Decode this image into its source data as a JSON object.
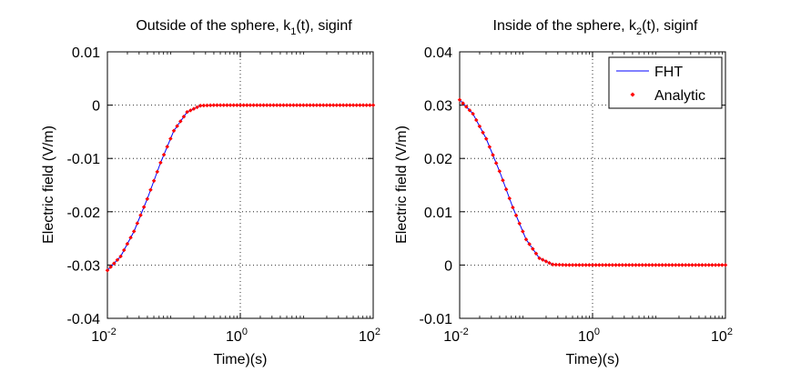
{
  "chart_data": [
    {
      "type": "line",
      "title_main": "Outside of the sphere, k",
      "title_sub": "1",
      "title_tail": "(t), siginf",
      "xlabel": "Time)(s)",
      "ylabel": "Electric field (V/m)",
      "xscale": "log",
      "xlim": [
        0.01,
        100
      ],
      "ylim": [
        -0.04,
        0.01
      ],
      "grid": true,
      "xticks": [
        {
          "base": "10",
          "exp": "-2"
        },
        {
          "base": "10",
          "exp": "0"
        },
        {
          "base": "10",
          "exp": "2"
        }
      ],
      "yticks": [
        "0.01",
        "0",
        "-0.01",
        "-0.02",
        "-0.03",
        "-0.04"
      ],
      "ytick_values": [
        0.01,
        0,
        -0.01,
        -0.02,
        -0.03,
        -0.04
      ],
      "series": [
        {
          "name": "FHT",
          "style": "line",
          "color": "#0000ff",
          "x": [
            0.01,
            0.0158,
            0.0251,
            0.0398,
            0.0631,
            0.1,
            0.158,
            0.251,
            0.398,
            0.631,
            1,
            10,
            100
          ],
          "y": [
            -0.031,
            -0.0284,
            -0.0237,
            -0.0176,
            -0.0108,
            -0.0048,
            -0.0013,
            -0.0001,
            0,
            0,
            0,
            0,
            0
          ]
        },
        {
          "name": "Analytic",
          "style": "markers",
          "color": "#ff0000",
          "x": [
            0.01,
            0.0158,
            0.0251,
            0.0398,
            0.0631,
            0.1,
            0.158,
            0.251,
            0.398,
            0.631,
            1,
            10,
            100
          ],
          "y": [
            -0.031,
            -0.0284,
            -0.0237,
            -0.0176,
            -0.0108,
            -0.0048,
            -0.0013,
            -0.0001,
            0,
            0,
            0,
            0,
            0
          ]
        }
      ]
    },
    {
      "type": "line",
      "title_main": "Inside of the sphere, k",
      "title_sub": "2",
      "title_tail": "(t), siginf",
      "xlabel": "Time)(s)",
      "ylabel": "Electric field (V/m)",
      "xscale": "log",
      "xlim": [
        0.01,
        100
      ],
      "ylim": [
        -0.01,
        0.04
      ],
      "grid": true,
      "legend": "top-right",
      "xticks": [
        {
          "base": "10",
          "exp": "-2"
        },
        {
          "base": "10",
          "exp": "0"
        },
        {
          "base": "10",
          "exp": "2"
        }
      ],
      "yticks": [
        "0.04",
        "0.03",
        "0.02",
        "0.01",
        "0",
        "-0.01"
      ],
      "ytick_values": [
        0.04,
        0.03,
        0.02,
        0.01,
        0,
        -0.01
      ],
      "series": [
        {
          "name": "FHT",
          "style": "line",
          "color": "#0000ff",
          "x": [
            0.01,
            0.0158,
            0.0251,
            0.0398,
            0.0631,
            0.1,
            0.158,
            0.251,
            0.398,
            0.631,
            1,
            10,
            100
          ],
          "y": [
            0.031,
            0.0284,
            0.0237,
            0.0176,
            0.0108,
            0.0048,
            0.0013,
            0.0001,
            0,
            0,
            0,
            0,
            0
          ]
        },
        {
          "name": "Analytic",
          "style": "markers",
          "color": "#ff0000",
          "x": [
            0.01,
            0.0158,
            0.0251,
            0.0398,
            0.0631,
            0.1,
            0.158,
            0.251,
            0.398,
            0.631,
            1,
            10,
            100
          ],
          "y": [
            0.031,
            0.0284,
            0.0237,
            0.0176,
            0.0108,
            0.0048,
            0.0013,
            0.0001,
            0,
            0,
            0,
            0,
            0
          ]
        }
      ]
    }
  ]
}
